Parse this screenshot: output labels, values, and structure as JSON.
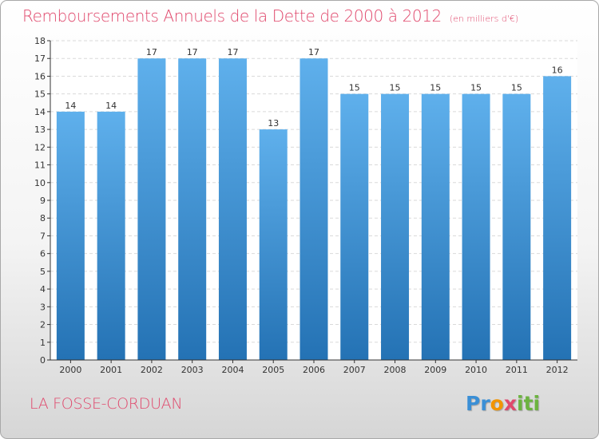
{
  "header": {
    "title": "Remboursements Annuels de la Dette de 2000 à 2012",
    "unit": "(en milliers d'€)"
  },
  "footer": {
    "place": "LA FOSSE-CORDUAN",
    "logo": {
      "letters": [
        "P",
        "r",
        "o",
        "x",
        "i",
        "t",
        "i"
      ],
      "letter_colors": [
        "#3a8fd6",
        "#3a8fd6",
        "#f29400",
        "#e0486c",
        "#6cb33f",
        "#6cb33f",
        "#6cb33f"
      ]
    }
  },
  "colors": {
    "title": "#e0486c",
    "bar_top": "#5fb0ec",
    "bar_bottom": "#2472b4",
    "axis": "#333333"
  },
  "chart_data": {
    "type": "bar",
    "title": "Remboursements Annuels de la Dette de 2000 à 2012",
    "subtitle": "(en milliers d'€)",
    "xlabel": "",
    "ylabel": "",
    "categories": [
      "2000",
      "2001",
      "2002",
      "2003",
      "2004",
      "2005",
      "2006",
      "2007",
      "2008",
      "2009",
      "2010",
      "2011",
      "2012"
    ],
    "values": [
      14,
      14,
      17,
      17,
      17,
      13,
      17,
      15,
      15,
      15,
      15,
      15,
      16
    ],
    "data_labels": [
      "14",
      "14",
      "17",
      "17",
      "17",
      "13",
      "17",
      "15",
      "15",
      "15",
      "15",
      "15",
      "16"
    ],
    "yticks": [
      "0",
      "1",
      "2",
      "3",
      "4",
      "5",
      "6",
      "7",
      "8",
      "9",
      "10",
      "11",
      "12",
      "13",
      "14",
      "15",
      "16",
      "17",
      "18"
    ],
    "ylim": [
      0,
      18
    ],
    "grid": true
  }
}
